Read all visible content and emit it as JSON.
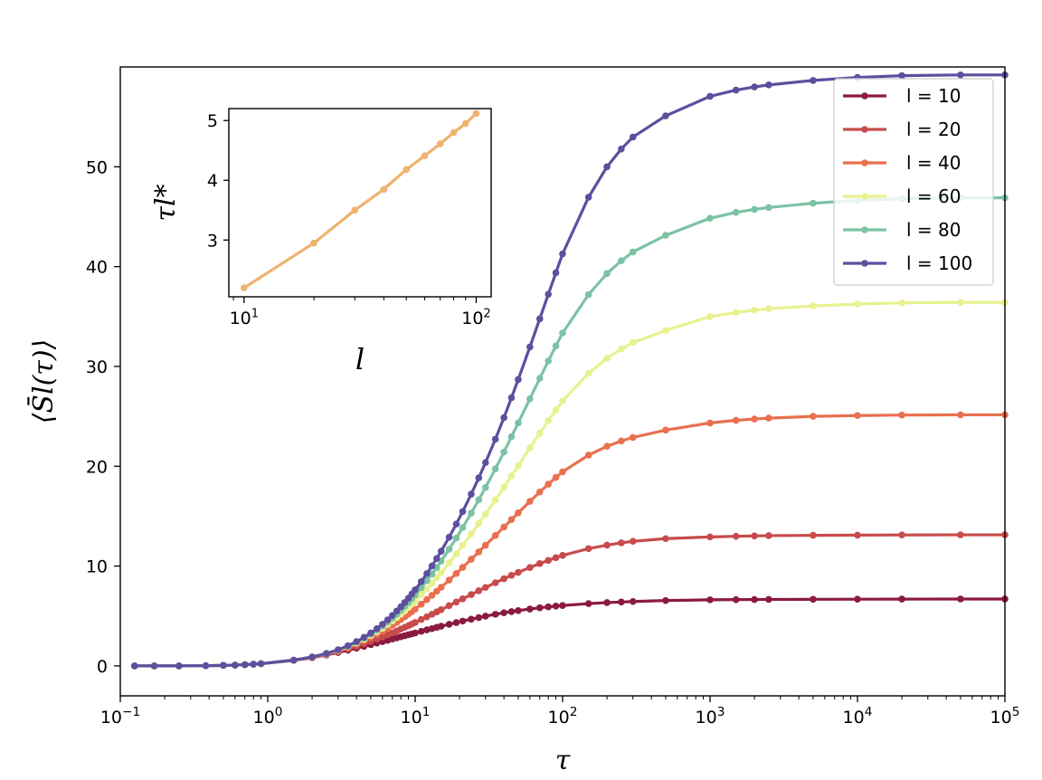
{
  "chart_data": [
    {
      "id": "main",
      "type": "line",
      "xlabel": "τ",
      "ylabel": "⟨S̄l(τ)⟩",
      "xscale": "log",
      "xlim": [
        0.1,
        100000
      ],
      "ylim": [
        -3,
        60
      ],
      "xticks": [
        {
          "value": 0.1,
          "base": "10",
          "exp": "−1"
        },
        {
          "value": 1,
          "base": "10",
          "exp": "0"
        },
        {
          "value": 10,
          "base": "10",
          "exp": "1"
        },
        {
          "value": 100,
          "base": "10",
          "exp": "2"
        },
        {
          "value": 1000,
          "base": "10",
          "exp": "3"
        },
        {
          "value": 10000,
          "base": "10",
          "exp": "4"
        },
        {
          "value": 100000,
          "base": "10",
          "exp": "5"
        }
      ],
      "yticks": [
        0,
        10,
        20,
        30,
        40,
        50
      ],
      "grid": false,
      "legend_position": "top-right",
      "x": [
        0.125,
        0.17,
        0.25,
        0.38,
        0.5,
        0.6,
        0.7,
        0.8,
        0.9,
        1.5,
        2,
        2.5,
        3,
        3.5,
        4,
        4.5,
        5,
        5.5,
        6,
        6.5,
        7,
        7.5,
        8,
        8.5,
        9,
        9.5,
        10,
        11,
        12,
        13,
        14,
        15,
        17,
        19,
        21,
        24,
        27,
        30,
        35,
        40,
        45,
        50,
        60,
        70,
        80,
        90,
        100,
        150,
        200,
        250,
        300,
        500,
        1000,
        1500,
        2000,
        2500,
        5000,
        10000,
        20000,
        50000,
        100000
      ],
      "series": [
        {
          "name": "l = 10",
          "color": "#8b1a42",
          "values": [
            0,
            0,
            0,
            0.02,
            0.05,
            0.08,
            0.12,
            0.17,
            0.22,
            0.55,
            0.82,
            1.1,
            1.35,
            1.57,
            1.78,
            1.96,
            2.13,
            2.29,
            2.43,
            2.56,
            2.69,
            2.81,
            2.92,
            3.02,
            3.12,
            3.21,
            3.3,
            3.46,
            3.61,
            3.74,
            3.86,
            3.97,
            4.17,
            4.34,
            4.49,
            4.68,
            4.84,
            4.98,
            5.17,
            5.32,
            5.44,
            5.54,
            5.7,
            5.82,
            5.91,
            5.99,
            6.05,
            6.24,
            6.34,
            6.4,
            6.45,
            6.55,
            6.62,
            6.64,
            6.65,
            6.66,
            6.67,
            6.68,
            6.69,
            6.7,
            6.7
          ]
        },
        {
          "name": "l = 20",
          "color": "#c84b4c",
          "values": [
            0,
            0,
            0,
            0.02,
            0.05,
            0.08,
            0.12,
            0.17,
            0.22,
            0.56,
            0.84,
            1.14,
            1.42,
            1.69,
            1.96,
            2.21,
            2.45,
            2.68,
            2.9,
            3.11,
            3.31,
            3.5,
            3.69,
            3.86,
            4.03,
            4.19,
            4.35,
            4.65,
            4.92,
            5.17,
            5.41,
            5.63,
            6.04,
            6.4,
            6.72,
            7.15,
            7.53,
            7.86,
            8.33,
            8.73,
            9.07,
            9.37,
            9.86,
            10.25,
            10.57,
            10.84,
            11.07,
            11.75,
            12.1,
            12.33,
            12.48,
            12.75,
            12.92,
            12.98,
            13.02,
            13.05,
            13.08,
            13.1,
            13.12,
            13.13,
            13.13
          ]
        },
        {
          "name": "l = 40",
          "color": "#e8704f",
          "values": [
            0,
            0,
            0,
            0.02,
            0.05,
            0.08,
            0.12,
            0.17,
            0.22,
            0.57,
            0.87,
            1.19,
            1.52,
            1.85,
            2.18,
            2.51,
            2.84,
            3.16,
            3.47,
            3.77,
            4.07,
            4.36,
            4.64,
            4.91,
            5.18,
            5.44,
            5.69,
            6.18,
            6.64,
            7.07,
            7.48,
            7.87,
            8.6,
            9.26,
            9.87,
            10.68,
            11.42,
            12.09,
            13.06,
            13.91,
            14.66,
            15.33,
            16.48,
            17.42,
            18.21,
            18.87,
            19.44,
            21.12,
            22,
            22.53,
            22.89,
            23.62,
            24.34,
            24.6,
            24.73,
            24.82,
            25,
            25.08,
            25.13,
            25.15,
            25.15
          ]
        },
        {
          "name": "l = 60",
          "color": "#e8f18f",
          "values": [
            0,
            0,
            0,
            0.02,
            0.05,
            0.08,
            0.12,
            0.17,
            0.22,
            0.58,
            0.88,
            1.22,
            1.57,
            1.93,
            2.3,
            2.67,
            3.04,
            3.41,
            3.77,
            4.13,
            4.49,
            4.84,
            5.18,
            5.52,
            5.86,
            6.18,
            6.5,
            7.12,
            7.71,
            8.28,
            8.82,
            9.34,
            10.32,
            11.23,
            12.07,
            13.22,
            14.26,
            15.22,
            16.64,
            17.9,
            19.03,
            20.05,
            21.83,
            23.31,
            24.56,
            25.62,
            26.55,
            29.31,
            30.82,
            31.75,
            32.39,
            33.6,
            35,
            35.4,
            35.63,
            35.78,
            36.06,
            36.25,
            36.37,
            36.42,
            36.42
          ]
        },
        {
          "name": "l = 80",
          "color": "#7cc2a4",
          "values": [
            0,
            0,
            0,
            0.02,
            0.05,
            0.08,
            0.12,
            0.17,
            0.22,
            0.58,
            0.89,
            1.23,
            1.6,
            1.98,
            2.37,
            2.77,
            3.17,
            3.58,
            3.98,
            4.38,
            4.78,
            5.18,
            5.57,
            5.96,
            6.35,
            6.73,
            7.1,
            7.83,
            8.53,
            9.21,
            9.86,
            10.49,
            11.69,
            12.81,
            13.86,
            15.31,
            16.64,
            17.88,
            19.74,
            21.43,
            22.96,
            24.34,
            26.76,
            28.8,
            30.55,
            32.05,
            33.35,
            37.2,
            39.3,
            40.58,
            41.47,
            43.13,
            44.85,
            45.43,
            45.73,
            45.92,
            46.35,
            46.63,
            46.81,
            46.89,
            46.89
          ]
        },
        {
          "name": "l = 100",
          "color": "#5d4f9e",
          "values": [
            0,
            0,
            0,
            0.02,
            0.05,
            0.08,
            0.12,
            0.17,
            0.22,
            0.58,
            0.89,
            1.24,
            1.62,
            2.02,
            2.43,
            2.86,
            3.29,
            3.73,
            4.17,
            4.61,
            5.05,
            5.49,
            5.92,
            6.35,
            6.78,
            7.2,
            7.62,
            8.44,
            9.24,
            10.01,
            10.76,
            11.49,
            12.89,
            14.21,
            15.46,
            17.21,
            18.84,
            20.37,
            22.71,
            24.87,
            26.86,
            28.69,
            31.95,
            34.77,
            37.23,
            39.38,
            41.28,
            46.95,
            50,
            51.78,
            52.98,
            55.1,
            57.06,
            57.68,
            58,
            58.2,
            58.65,
            58.95,
            59.13,
            59.2,
            59.2
          ]
        }
      ]
    },
    {
      "id": "inset",
      "type": "line",
      "xlabel": "l",
      "ylabel": "τl*",
      "xscale": "log",
      "xlim": [
        8.6,
        116
      ],
      "ylim": [
        2.05,
        5.2
      ],
      "xticks": [
        {
          "value": 10,
          "base": "10",
          "exp": "1"
        },
        {
          "value": 100,
          "base": "10",
          "exp": "2"
        }
      ],
      "yticks": [
        3,
        4,
        5
      ],
      "grid": false,
      "series": [
        {
          "name": "",
          "color": "#eeb36f",
          "x": [
            10,
            20,
            30,
            40,
            50,
            60,
            70,
            80,
            90,
            100
          ],
          "values": [
            2.2,
            2.95,
            3.5,
            3.85,
            4.18,
            4.41,
            4.61,
            4.8,
            4.95,
            5.12
          ]
        }
      ]
    }
  ]
}
